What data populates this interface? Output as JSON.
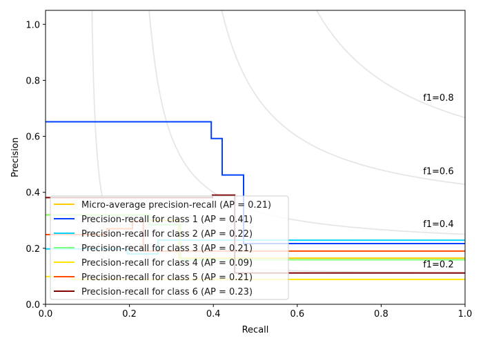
{
  "chart_data": {
    "type": "line",
    "title": "",
    "xlabel": "Recall",
    "ylabel": "Precision",
    "xlim": [
      0,
      1
    ],
    "ylim": [
      0,
      1.05
    ],
    "xticks": [
      "0.0",
      "0.2",
      "0.4",
      "0.6",
      "0.8",
      "1.0"
    ],
    "xtick_values": [
      0,
      0.2,
      0.4,
      0.6,
      0.8,
      1.0
    ],
    "yticks": [
      "0.0",
      "0.2",
      "0.4",
      "0.6",
      "0.8",
      "1.0"
    ],
    "ytick_values": [
      0,
      0.2,
      0.4,
      0.6,
      0.8,
      1.0
    ],
    "grid": false,
    "legend_placement": "lower-left",
    "iso_f1": [
      {
        "f": 0.2,
        "label": "f1=0.2"
      },
      {
        "f": 0.4,
        "label": "f1=0.4"
      },
      {
        "f": 0.6,
        "label": "f1=0.6"
      },
      {
        "f": 0.8,
        "label": "f1=0.8"
      }
    ],
    "iso_color": "#e6e6e6",
    "series": [
      {
        "name": "Micro-average precision-recall (AP = 0.21)",
        "color": "#ffcc00",
        "recall": [
          0,
          0.248,
          0.248,
          0.318,
          0.318,
          1.0
        ],
        "precision": [
          0.32,
          0.32,
          0.3,
          0.3,
          0.165,
          0.165
        ]
      },
      {
        "name": "Precision-recall for class 1 (AP = 0.41)",
        "color": "#0040ff",
        "recall": [
          0,
          0.395,
          0.395,
          0.421,
          0.421,
          0.472,
          0.472,
          1.0
        ],
        "precision": [
          0.652,
          0.652,
          0.592,
          0.592,
          0.462,
          0.462,
          0.217,
          0.217
        ]
      },
      {
        "name": "Precision-recall for class 2 (AP = 0.22)",
        "color": "#00d4ff",
        "recall": [
          0,
          0.196,
          0.196,
          0.268,
          0.268,
          1.0
        ],
        "precision": [
          0.198,
          0.198,
          0.18,
          0.18,
          0.229,
          0.229
        ]
      },
      {
        "name": "Precision-recall for class 3 (AP = 0.21)",
        "color": "#7dff7a",
        "recall": [
          0,
          0.248,
          0.248,
          0.322,
          0.322,
          1.0
        ],
        "precision": [
          0.319,
          0.319,
          0.284,
          0.284,
          0.159,
          0.159
        ]
      },
      {
        "name": "Precision-recall for class 4 (AP = 0.09)",
        "color": "#ffe600",
        "recall": [
          0,
          0.061,
          0.061,
          1.0
        ],
        "precision": [
          0.099,
          0.099,
          0.089,
          0.089
        ]
      },
      {
        "name": "Precision-recall for class 5 (AP = 0.21)",
        "color": "#ff4a00",
        "recall": [
          0,
          0.146,
          0.146,
          0.207,
          0.207,
          0.233,
          0.233,
          1.0
        ],
        "precision": [
          0.249,
          0.249,
          0.27,
          0.27,
          0.297,
          0.297,
          0.19,
          0.19
        ]
      },
      {
        "name": "Precision-recall for class 6 (AP = 0.23)",
        "color": "#800000",
        "recall": [
          0,
          0.398,
          0.398,
          0.451,
          0.451,
          1.0
        ],
        "precision": [
          0.381,
          0.381,
          0.39,
          0.39,
          0.112,
          0.112
        ]
      }
    ]
  }
}
